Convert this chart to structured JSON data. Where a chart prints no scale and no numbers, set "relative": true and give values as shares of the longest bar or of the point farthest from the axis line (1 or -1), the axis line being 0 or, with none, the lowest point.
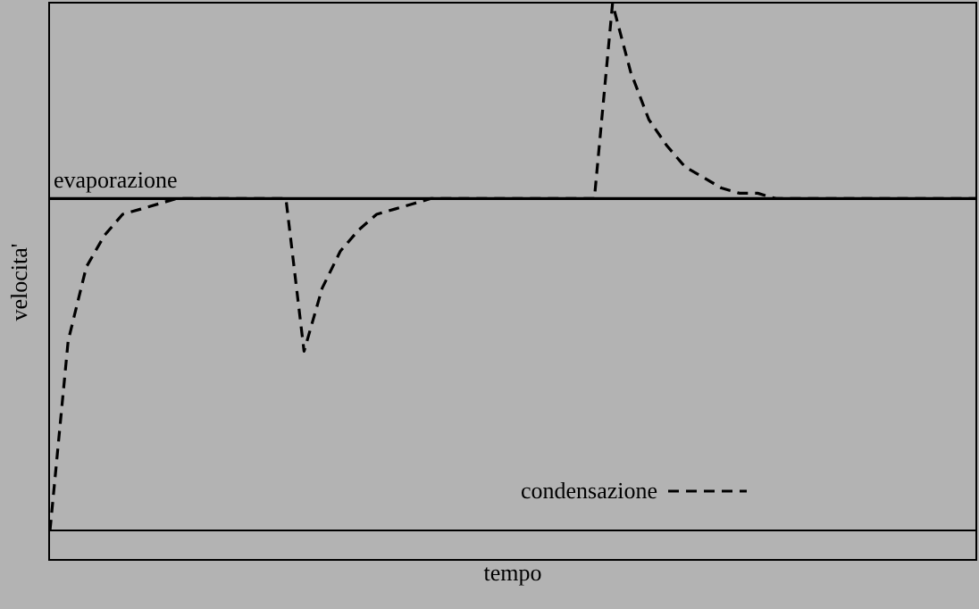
{
  "chart_data": {
    "type": "line",
    "relative": true,
    "xlabel": "tempo",
    "ylabel": "velocita'",
    "categories": [
      null,
      null,
      null,
      null,
      null,
      null,
      null,
      null,
      null,
      null,
      null,
      null,
      null,
      null,
      null,
      null,
      null,
      null,
      null,
      null,
      null,
      null,
      null,
      null,
      null,
      null,
      null,
      null,
      null,
      null,
      null,
      null,
      null,
      null,
      null,
      null,
      null,
      null,
      null,
      null,
      null,
      null,
      null,
      null,
      null,
      null,
      null,
      null,
      null,
      null,
      null,
      null
    ],
    "series": [
      {
        "name": "evaporazione",
        "color": "#000000",
        "line_style": "solid",
        "values": [
          0.63,
          0.63,
          0.63,
          0.63,
          0.63,
          0.63,
          0.63,
          0.63,
          0.63,
          0.63,
          0.63,
          0.63,
          0.63,
          0.63,
          0.63,
          0.63,
          0.63,
          0.63,
          0.63,
          0.63,
          0.63,
          0.63,
          0.63,
          0.63,
          0.63,
          0.63,
          0.63,
          0.63,
          0.63,
          0.63,
          0.63,
          0.63,
          0.63,
          0.63,
          0.63,
          0.63,
          0.63,
          0.63,
          0.63,
          0.63,
          0.63,
          0.63,
          0.63,
          0.63,
          0.63,
          0.63,
          0.63,
          0.63,
          0.63,
          0.63,
          0.63,
          0.63
        ]
      },
      {
        "name": "condensazione",
        "color": "#000000",
        "line_style": "dashed",
        "values": [
          0,
          0.36,
          0.5,
          0.56,
          0.6,
          0.61,
          0.62,
          0.63,
          0.63,
          0.63,
          0.63,
          0.63,
          0.63,
          0.63,
          0.34,
          0.46,
          0.53,
          0.57,
          0.6,
          0.61,
          0.62,
          0.63,
          0.63,
          0.63,
          0.63,
          0.63,
          0.63,
          0.63,
          0.63,
          0.63,
          0.63,
          1,
          0.87,
          0.78,
          0.73,
          0.69,
          0.67,
          0.65,
          0.64,
          0.64,
          0.63,
          0.63,
          0.63,
          0.63,
          0.63,
          0.63,
          0.63,
          0.63,
          0.63,
          0.63,
          0.63,
          0.63
        ]
      }
    ],
    "legend": "bottom right",
    "grid": false,
    "marker": "none"
  }
}
